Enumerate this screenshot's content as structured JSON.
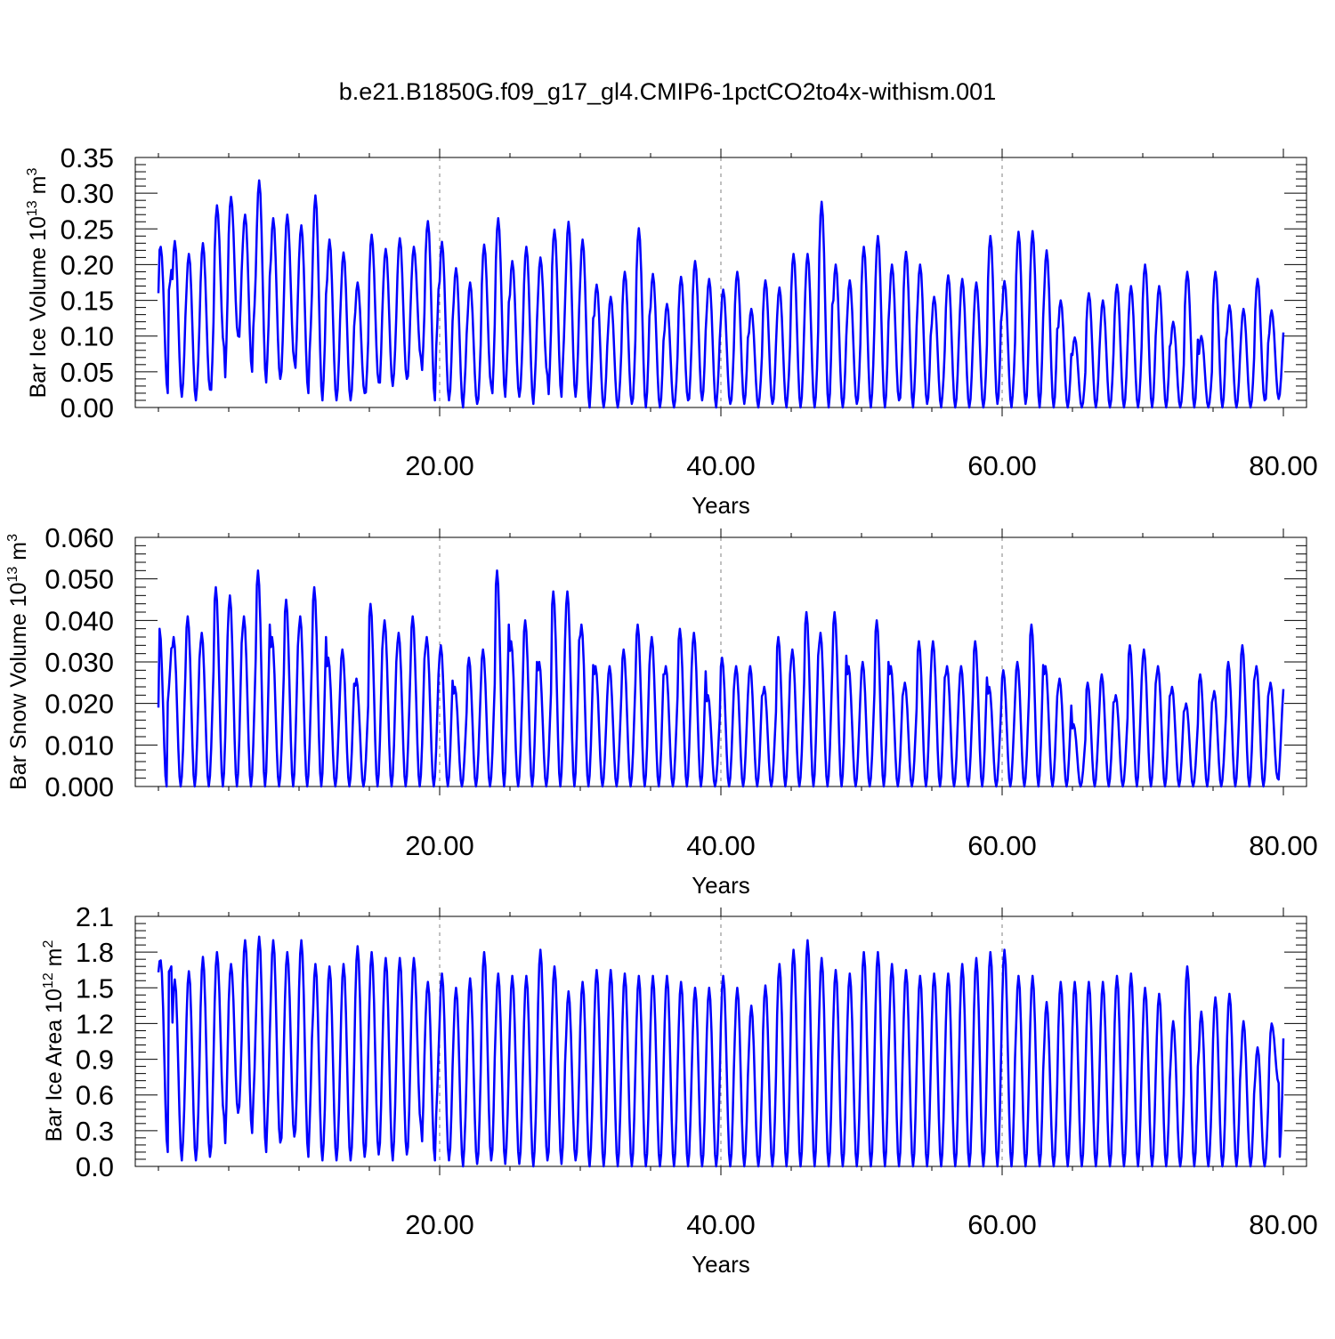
{
  "title": "b.e21.B1850G.f09_g17_gl4.CMIP6-1pctCO2to4x-withism.001",
  "colors": {
    "line": "#0000ff",
    "axis": "#000000",
    "grid": "#808080"
  },
  "chart_data": [
    {
      "type": "line",
      "ylabel": {
        "text": "Bar Ice Volume 10",
        "exponent": "13",
        "unit": "m",
        "unit_exponent": "3"
      },
      "xlabel": "Years",
      "xlim": [
        0,
        80
      ],
      "ylim": [
        0,
        0.35
      ],
      "xticks": [
        "20.00",
        "40.00",
        "60.00",
        "80.00"
      ],
      "yticks": [
        "0.00",
        "0.05",
        "0.10",
        "0.15",
        "0.20",
        "0.25",
        "0.30",
        "0.35"
      ],
      "grid": "dashed vertical at 20, 40, 60",
      "series": [
        {
          "peak_month": 2,
          "peaks": [
            0.225,
            0.233,
            0.215,
            0.23,
            0.283,
            0.295,
            0.27,
            0.318,
            0.265,
            0.27,
            0.255,
            0.297,
            0.235,
            0.217,
            0.175,
            0.242,
            0.222,
            0.237,
            0.225,
            0.261,
            0.232,
            0.195,
            0.175,
            0.228,
            0.265,
            0.205,
            0.225,
            0.21,
            0.249,
            0.26,
            0.235,
            0.172,
            0.155,
            0.19,
            0.251,
            0.187,
            0.145,
            0.183,
            0.205,
            0.18,
            0.165,
            0.19,
            0.138,
            0.178,
            0.168,
            0.215,
            0.215,
            0.288,
            0.2,
            0.178,
            0.225,
            0.24,
            0.2,
            0.218,
            0.2,
            0.155,
            0.185,
            0.18,
            0.175,
            0.24,
            0.177,
            0.246,
            0.247,
            0.22,
            0.15,
            0.098,
            0.16,
            0.15,
            0.172,
            0.17,
            0.2,
            0.17,
            0.12,
            0.19,
            0.1,
            0.19,
            0.143,
            0.138,
            0.18,
            0.136
          ],
          "troughs": [
            0.16,
            0.02,
            0.015,
            0.01,
            0.025,
            0.085,
            0.1,
            0.05,
            0.035,
            0.04,
            0.065,
            0.02,
            0.01,
            0.01,
            0.01,
            0.02,
            0.035,
            0.03,
            0.04,
            0.07,
            0.01,
            0.01,
            0.0,
            0.005,
            0.03,
            0.015,
            0.015,
            0.005,
            0.045,
            0.015,
            0.015,
            0.0,
            0.0,
            0.0,
            0.005,
            0.0,
            0.0,
            0.0,
            0.01,
            0.01,
            0.0,
            0.005,
            0.005,
            0.0,
            0.005,
            0.0,
            0.0,
            0.0,
            0.0,
            0.0,
            0.005,
            0.0,
            0.0,
            0.01,
            0.0,
            0.005,
            0.0,
            0.0,
            0.0,
            0.0,
            0.005,
            0.0,
            0.005,
            0.0,
            0.0,
            0.0,
            0.0,
            0.0,
            0.0,
            0.0,
            0.0,
            0.0,
            0.0,
            0.0,
            0.0,
            0.0,
            0.0,
            0.0,
            0.0,
            0.01,
            0.012
          ]
        }
      ]
    },
    {
      "type": "line",
      "ylabel": {
        "text": "Bar Snow Volume 10",
        "exponent": "13",
        "unit": "m",
        "unit_exponent": "3"
      },
      "xlabel": "Years",
      "xlim": [
        0,
        80
      ],
      "ylim": [
        0,
        0.06
      ],
      "xticks": [
        "20.00",
        "40.00",
        "60.00",
        "80.00"
      ],
      "yticks": [
        "0.000",
        "0.010",
        "0.020",
        "0.030",
        "0.040",
        "0.050",
        "0.060"
      ],
      "grid": "dashed vertical at 20, 40, 60",
      "series": [
        {
          "peak_month": 1,
          "peaks": [
            0.038,
            0.036,
            0.041,
            0.037,
            0.048,
            0.046,
            0.041,
            0.052,
            0.036,
            0.045,
            0.041,
            0.048,
            0.031,
            0.033,
            0.026,
            0.044,
            0.04,
            0.037,
            0.041,
            0.036,
            0.034,
            0.024,
            0.031,
            0.033,
            0.052,
            0.035,
            0.04,
            0.03,
            0.047,
            0.047,
            0.039,
            0.029,
            0.029,
            0.033,
            0.039,
            0.036,
            0.029,
            0.038,
            0.037,
            0.022,
            0.031,
            0.029,
            0.029,
            0.024,
            0.036,
            0.033,
            0.042,
            0.037,
            0.042,
            0.029,
            0.03,
            0.04,
            0.029,
            0.025,
            0.035,
            0.035,
            0.029,
            0.029,
            0.035,
            0.024,
            0.028,
            0.03,
            0.039,
            0.029,
            0.026,
            0.015,
            0.025,
            0.027,
            0.022,
            0.034,
            0.033,
            0.029,
            0.024,
            0.02,
            0.027,
            0.023,
            0.03,
            0.034,
            0.029,
            0.025
          ],
          "troughs": [
            0.019,
            0.0,
            0.0,
            0.0,
            0.0,
            0.0,
            0.0,
            0.0,
            0.0,
            0.0,
            0.0,
            0.0,
            0.0,
            0.0,
            0.0,
            0.0,
            0.0,
            0.0,
            0.0,
            0.0,
            0.0,
            0.0,
            0.0,
            0.0,
            0.0,
            0.0,
            0.0,
            0.0,
            0.0,
            0.0,
            0.0,
            0.0,
            0.0,
            0.0,
            0.0,
            0.0,
            0.0,
            0.0,
            0.0,
            0.0,
            0.0,
            0.0,
            0.0,
            0.0,
            0.0,
            0.0,
            0.0,
            0.0,
            0.0,
            0.0,
            0.0,
            0.0,
            0.0,
            0.0,
            0.0,
            0.0,
            0.0,
            0.0,
            0.0,
            0.0,
            0.0,
            0.0,
            0.0,
            0.0,
            0.0,
            0.0,
            0.0,
            0.0,
            0.0,
            0.0,
            0.0,
            0.0,
            0.0,
            0.0,
            0.0,
            0.0,
            0.0,
            0.0,
            0.0,
            0.0,
            0.002
          ]
        }
      ]
    },
    {
      "type": "line",
      "ylabel": {
        "text": "Bar Ice Area 10",
        "exponent": "12",
        "unit": "m",
        "unit_exponent": "2"
      },
      "xlabel": "Years",
      "xlim": [
        0,
        80
      ],
      "ylim": [
        0,
        2.1
      ],
      "xticks": [
        "20.00",
        "40.00",
        "60.00",
        "80.00"
      ],
      "yticks": [
        "0.0",
        "0.3",
        "0.6",
        "0.9",
        "1.2",
        "1.5",
        "1.8",
        "2.1"
      ],
      "grid": "dashed vertical at 20, 40, 60",
      "series": [
        {
          "peak_month": 2,
          "peaks": [
            1.73,
            1.57,
            1.64,
            1.76,
            1.8,
            1.7,
            1.9,
            1.93,
            1.9,
            1.8,
            1.9,
            1.7,
            1.68,
            1.7,
            1.85,
            1.8,
            1.75,
            1.75,
            1.75,
            1.55,
            1.62,
            1.5,
            1.58,
            1.8,
            1.62,
            1.6,
            1.6,
            1.82,
            1.68,
            1.47,
            1.55,
            1.65,
            1.65,
            1.62,
            1.6,
            1.6,
            1.6,
            1.55,
            1.5,
            1.5,
            1.6,
            1.5,
            1.35,
            1.52,
            1.7,
            1.82,
            1.9,
            1.75,
            1.65,
            1.62,
            1.8,
            1.8,
            1.7,
            1.65,
            1.6,
            1.62,
            1.62,
            1.7,
            1.75,
            1.8,
            1.82,
            1.6,
            1.6,
            1.38,
            1.55,
            1.55,
            1.55,
            1.55,
            1.6,
            1.62,
            1.5,
            1.45,
            1.22,
            1.68,
            1.3,
            1.42,
            1.45,
            1.22,
            1.0,
            1.2
          ],
          "troughs": [
            1.63,
            0.12,
            0.05,
            0.05,
            0.08,
            0.42,
            0.45,
            0.28,
            0.12,
            0.2,
            0.25,
            0.08,
            0.05,
            0.05,
            0.05,
            0.08,
            0.1,
            0.05,
            0.1,
            0.35,
            0.05,
            0.05,
            0.0,
            0.02,
            0.05,
            0.02,
            0.02,
            0.0,
            0.05,
            0.02,
            0.05,
            0.0,
            0.0,
            0.0,
            0.0,
            0.0,
            0.0,
            0.0,
            0.0,
            0.0,
            0.0,
            0.0,
            0.0,
            0.0,
            0.0,
            0.0,
            0.0,
            0.0,
            0.0,
            0.0,
            0.0,
            0.0,
            0.0,
            0.0,
            0.0,
            0.0,
            0.0,
            0.0,
            0.0,
            0.0,
            0.0,
            0.0,
            0.0,
            0.0,
            0.0,
            0.0,
            0.0,
            0.0,
            0.0,
            0.0,
            0.0,
            0.0,
            0.0,
            0.0,
            0.0,
            0.0,
            0.0,
            0.0,
            0.0,
            0.0,
            0.7
          ]
        }
      ]
    }
  ]
}
